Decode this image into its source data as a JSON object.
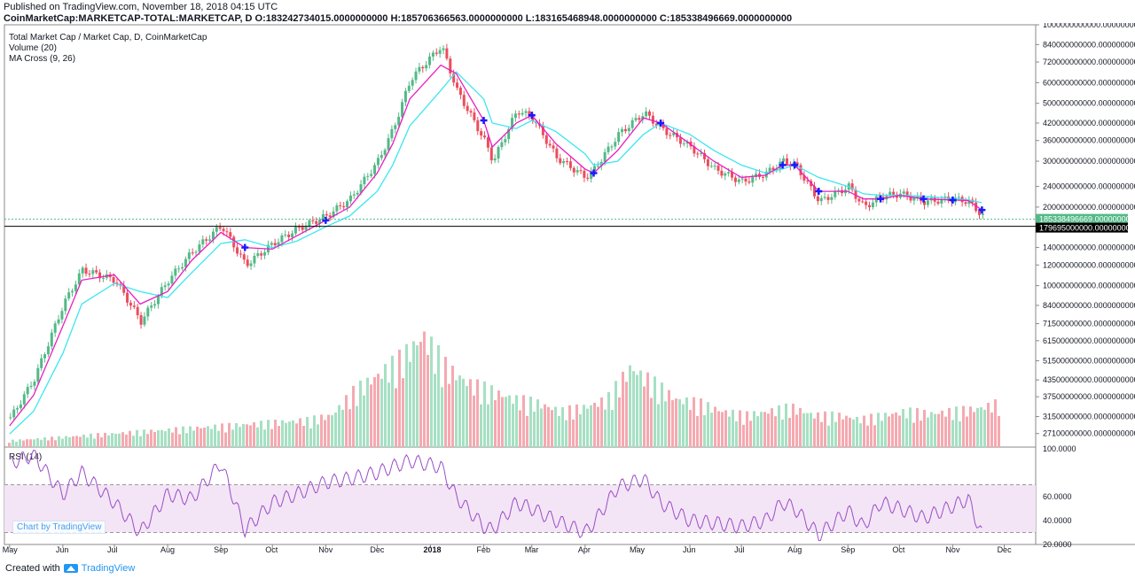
{
  "header": {
    "published": "Published on TradingView.com, November 18, 2018 04:15 UTC",
    "ohlc": "CoinMarketCap:MARKETCAP-TOTAL:MARKETCAP, D  O:183242734015.0000000000 H:185706366563.0000000000 L:183165468948.0000000000 C:185338496669.0000000000"
  },
  "legend": {
    "title": "Total Market Cap / Market Cap, D, CoinMarketCap",
    "volume": "Volume (20)",
    "ma": "MA Cross (9, 26)",
    "rsi": "RSI (14)"
  },
  "watermark": "Chart by TradingView",
  "footer": {
    "created": "Created with",
    "brand": "TradingView"
  },
  "colors": {
    "up": "#53b987",
    "down": "#eb4d5c",
    "ma_fast": "#e91ebf",
    "ma_slow": "#3ce6f0",
    "cross": "#1a1aff",
    "rsi": "#9b4dc9",
    "rsi_band": "#f3e5f5"
  },
  "chart_data": {
    "type": "line",
    "title": "Total Market Cap / Market Cap, D, CoinMarketCap",
    "scale": "log",
    "ylim": [
      26000000000,
      1000000000000
    ],
    "price_labels": [
      "1000000000000.0000000000",
      "840000000000.0000000000",
      "720000000000.0000000000",
      "600000000000.0000000000",
      "500000000000.0000000000",
      "420000000000.0000000000",
      "360000000000.0000000000",
      "300000000000.0000000000",
      "240000000000.0000000000",
      "200000000000.0000000000",
      "140000000000.0000000000",
      "120000000000.0000000000",
      "100000000000.0000000000",
      "84000000000.0000000000",
      "71500000000.0000000000",
      "61500000000.0000000000",
      "51500000000.0000000000",
      "43500000000.0000000000",
      "37500000000.0000000000",
      "31500000000.0000000000",
      "27100000000.0000000000"
    ],
    "x_labels": [
      "May",
      "Jun",
      "Jul",
      "Aug",
      "Sep",
      "Oct",
      "Nov",
      "Dec",
      "2018",
      "Feb",
      "Mar",
      "Apr",
      "May",
      "Jun",
      "Jul",
      "Aug",
      "Sep",
      "Oct",
      "Nov",
      "Dec"
    ],
    "last_price_label": "185338496669.0000000000",
    "line_label": "179695000000.0000000000",
    "horizontal_line": 179695000000,
    "series": [
      {
        "name": "Total Market Cap",
        "x": [
          "2017-05-01",
          "2017-05-15",
          "2017-06-01",
          "2017-06-12",
          "2017-07-01",
          "2017-07-16",
          "2017-08-01",
          "2017-08-15",
          "2017-09-01",
          "2017-09-15",
          "2017-10-01",
          "2017-10-15",
          "2017-11-01",
          "2017-11-15",
          "2017-12-01",
          "2017-12-10",
          "2017-12-20",
          "2018-01-07",
          "2018-01-16",
          "2018-02-01",
          "2018-02-06",
          "2018-02-20",
          "2018-03-01",
          "2018-03-15",
          "2018-04-01",
          "2018-04-06",
          "2018-04-20",
          "2018-05-05",
          "2018-05-15",
          "2018-06-01",
          "2018-06-15",
          "2018-07-01",
          "2018-07-15",
          "2018-07-25",
          "2018-08-01",
          "2018-08-15",
          "2018-09-01",
          "2018-09-10",
          "2018-09-20",
          "2018-10-01",
          "2018-10-15",
          "2018-11-01",
          "2018-11-10",
          "2018-11-18"
        ],
        "values": [
          31000000000,
          44000000000,
          85000000000,
          115000000000,
          105000000000,
          73000000000,
          105000000000,
          135000000000,
          170000000000,
          120000000000,
          145000000000,
          165000000000,
          185000000000,
          215000000000,
          300000000000,
          400000000000,
          620000000000,
          830000000000,
          560000000000,
          360000000000,
          300000000000,
          470000000000,
          440000000000,
          310000000000,
          260000000000,
          280000000000,
          380000000000,
          460000000000,
          400000000000,
          340000000000,
          280000000000,
          250000000000,
          270000000000,
          300000000000,
          290000000000,
          210000000000,
          240000000000,
          200000000000,
          220000000000,
          225000000000,
          210000000000,
          215000000000,
          210000000000,
          185000000000
        ]
      },
      {
        "name": "MA 9",
        "values": [
          29000000000,
          38000000000,
          70000000000,
          105000000000,
          110000000000,
          85000000000,
          95000000000,
          125000000000,
          160000000000,
          140000000000,
          138000000000,
          155000000000,
          178000000000,
          200000000000,
          270000000000,
          350000000000,
          520000000000,
          700000000000,
          650000000000,
          430000000000,
          340000000000,
          420000000000,
          450000000000,
          350000000000,
          280000000000,
          270000000000,
          330000000000,
          440000000000,
          420000000000,
          350000000000,
          300000000000,
          260000000000,
          265000000000,
          290000000000,
          290000000000,
          230000000000,
          230000000000,
          215000000000,
          215000000000,
          222000000000,
          215000000000,
          213000000000,
          212000000000,
          195000000000
        ]
      },
      {
        "name": "MA 26",
        "values": [
          27000000000,
          33000000000,
          55000000000,
          85000000000,
          102000000000,
          95000000000,
          90000000000,
          112000000000,
          145000000000,
          150000000000,
          140000000000,
          148000000000,
          168000000000,
          185000000000,
          230000000000,
          290000000000,
          410000000000,
          560000000000,
          660000000000,
          520000000000,
          420000000000,
          400000000000,
          430000000000,
          390000000000,
          320000000000,
          290000000000,
          300000000000,
          380000000000,
          420000000000,
          380000000000,
          330000000000,
          290000000000,
          270000000000,
          280000000000,
          290000000000,
          260000000000,
          240000000000,
          225000000000,
          222000000000,
          222000000000,
          220000000000,
          216000000000,
          213000000000,
          208000000000
        ]
      }
    ],
    "volume": [
      8,
      10,
      12,
      14,
      16,
      18,
      20,
      22,
      24,
      26,
      28,
      30,
      32,
      34,
      40,
      70,
      90,
      110,
      140,
      100,
      80,
      70,
      60,
      55,
      45,
      50,
      60,
      100,
      80,
      60,
      55,
      45,
      40,
      45,
      50,
      40,
      40,
      35,
      40,
      45,
      42,
      45,
      48,
      55
    ],
    "rsi": {
      "ylim": [
        20,
        100
      ],
      "labels": [
        "100.0000",
        "60.0000",
        "40.0000",
        "20.0000"
      ],
      "bands": [
        70,
        30
      ],
      "values": [
        88,
        95,
        62,
        80,
        55,
        30,
        62,
        58,
        88,
        32,
        55,
        62,
        72,
        75,
        80,
        85,
        90,
        85,
        60,
        35,
        32,
        55,
        50,
        40,
        30,
        38,
        68,
        75,
        55,
        40,
        38,
        35,
        40,
        55,
        50,
        28,
        48,
        35,
        55,
        50,
        42,
        52,
        58,
        28
      ]
    }
  }
}
